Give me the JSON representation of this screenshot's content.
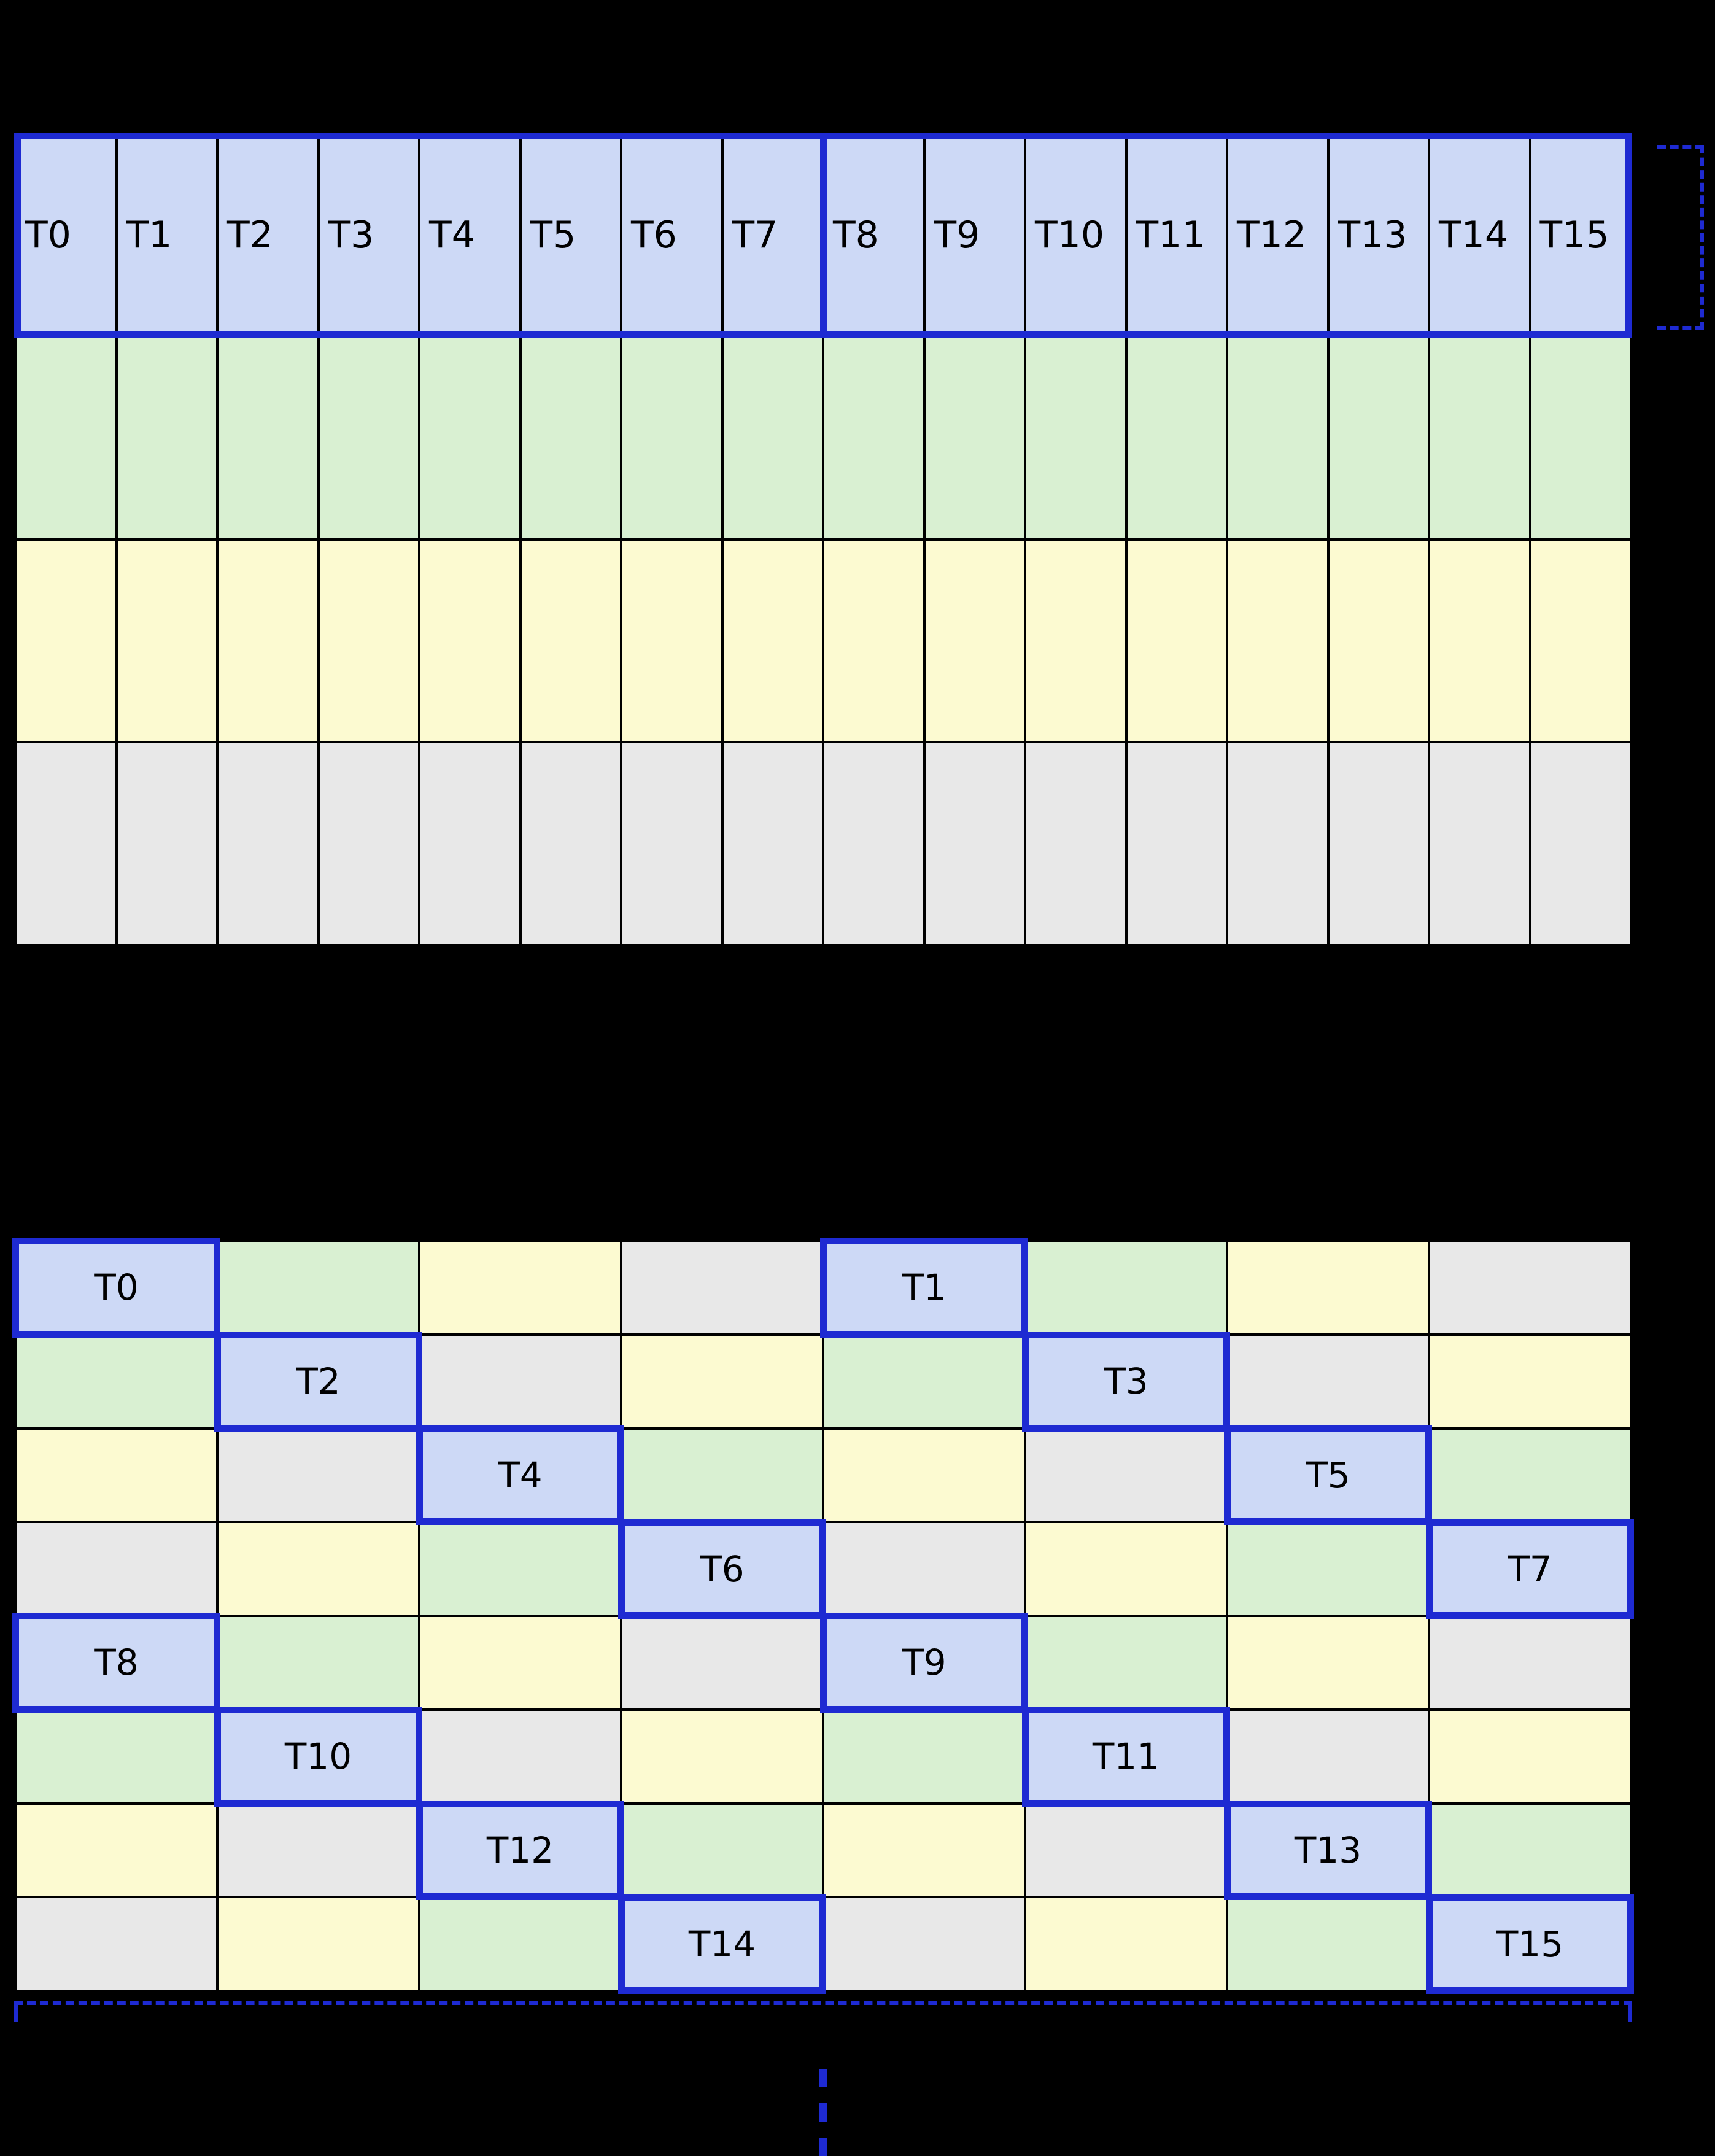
{
  "page": {
    "background": "#000000"
  },
  "colors": {
    "thread_fill": "#cdd9f6",
    "green_fill": "#d9f0d2",
    "yellow_fill": "#fcfad1",
    "gray_fill": "#e8e8e8",
    "grid_background": "#000000",
    "highlight_border": "#1e2ad2",
    "label_text": "#000000"
  },
  "top_table": {
    "columns": 16,
    "thread_labels": [
      "T0",
      "T1",
      "T2",
      "T3",
      "T4",
      "T5",
      "T6",
      "T7",
      "T8",
      "T9",
      "T10",
      "T11",
      "T12",
      "T13",
      "T14",
      "T15"
    ],
    "thread_row_fill": "thread_fill",
    "data_row_fills": [
      "green_fill",
      "yellow_fill",
      "gray_fill"
    ],
    "thread_group_size": 8
  },
  "bottom_table": {
    "columns": 8,
    "rows": [
      {
        "cells": [
          {
            "fill": "thread_fill",
            "label": "T0"
          },
          {
            "fill": "green_fill"
          },
          {
            "fill": "yellow_fill"
          },
          {
            "fill": "gray_fill"
          },
          {
            "fill": "thread_fill",
            "label": "T1"
          },
          {
            "fill": "green_fill"
          },
          {
            "fill": "yellow_fill"
          },
          {
            "fill": "gray_fill"
          }
        ]
      },
      {
        "cells": [
          {
            "fill": "green_fill"
          },
          {
            "fill": "thread_fill",
            "label": "T2"
          },
          {
            "fill": "gray_fill"
          },
          {
            "fill": "yellow_fill"
          },
          {
            "fill": "green_fill"
          },
          {
            "fill": "thread_fill",
            "label": "T3"
          },
          {
            "fill": "gray_fill"
          },
          {
            "fill": "yellow_fill"
          }
        ]
      },
      {
        "cells": [
          {
            "fill": "yellow_fill"
          },
          {
            "fill": "gray_fill"
          },
          {
            "fill": "thread_fill",
            "label": "T4"
          },
          {
            "fill": "green_fill"
          },
          {
            "fill": "yellow_fill"
          },
          {
            "fill": "gray_fill"
          },
          {
            "fill": "thread_fill",
            "label": "T5"
          },
          {
            "fill": "green_fill"
          }
        ]
      },
      {
        "cells": [
          {
            "fill": "gray_fill"
          },
          {
            "fill": "yellow_fill"
          },
          {
            "fill": "green_fill"
          },
          {
            "fill": "thread_fill",
            "label": "T6"
          },
          {
            "fill": "gray_fill"
          },
          {
            "fill": "yellow_fill"
          },
          {
            "fill": "green_fill"
          },
          {
            "fill": "thread_fill",
            "label": "T7"
          }
        ]
      },
      {
        "cells": [
          {
            "fill": "thread_fill",
            "label": "T8"
          },
          {
            "fill": "green_fill"
          },
          {
            "fill": "yellow_fill"
          },
          {
            "fill": "gray_fill"
          },
          {
            "fill": "thread_fill",
            "label": "T9"
          },
          {
            "fill": "green_fill"
          },
          {
            "fill": "yellow_fill"
          },
          {
            "fill": "gray_fill"
          }
        ]
      },
      {
        "cells": [
          {
            "fill": "green_fill"
          },
          {
            "fill": "thread_fill",
            "label": "T10"
          },
          {
            "fill": "gray_fill"
          },
          {
            "fill": "yellow_fill"
          },
          {
            "fill": "green_fill"
          },
          {
            "fill": "thread_fill",
            "label": "T11"
          },
          {
            "fill": "gray_fill"
          },
          {
            "fill": "yellow_fill"
          }
        ]
      },
      {
        "cells": [
          {
            "fill": "yellow_fill"
          },
          {
            "fill": "gray_fill"
          },
          {
            "fill": "thread_fill",
            "label": "T12"
          },
          {
            "fill": "green_fill"
          },
          {
            "fill": "yellow_fill"
          },
          {
            "fill": "gray_fill"
          },
          {
            "fill": "thread_fill",
            "label": "T13"
          },
          {
            "fill": "green_fill"
          }
        ]
      },
      {
        "cells": [
          {
            "fill": "gray_fill"
          },
          {
            "fill": "yellow_fill"
          },
          {
            "fill": "green_fill"
          },
          {
            "fill": "thread_fill",
            "label": "T14"
          },
          {
            "fill": "gray_fill"
          },
          {
            "fill": "yellow_fill"
          },
          {
            "fill": "green_fill"
          },
          {
            "fill": "thread_fill",
            "label": "T15"
          }
        ]
      }
    ]
  }
}
